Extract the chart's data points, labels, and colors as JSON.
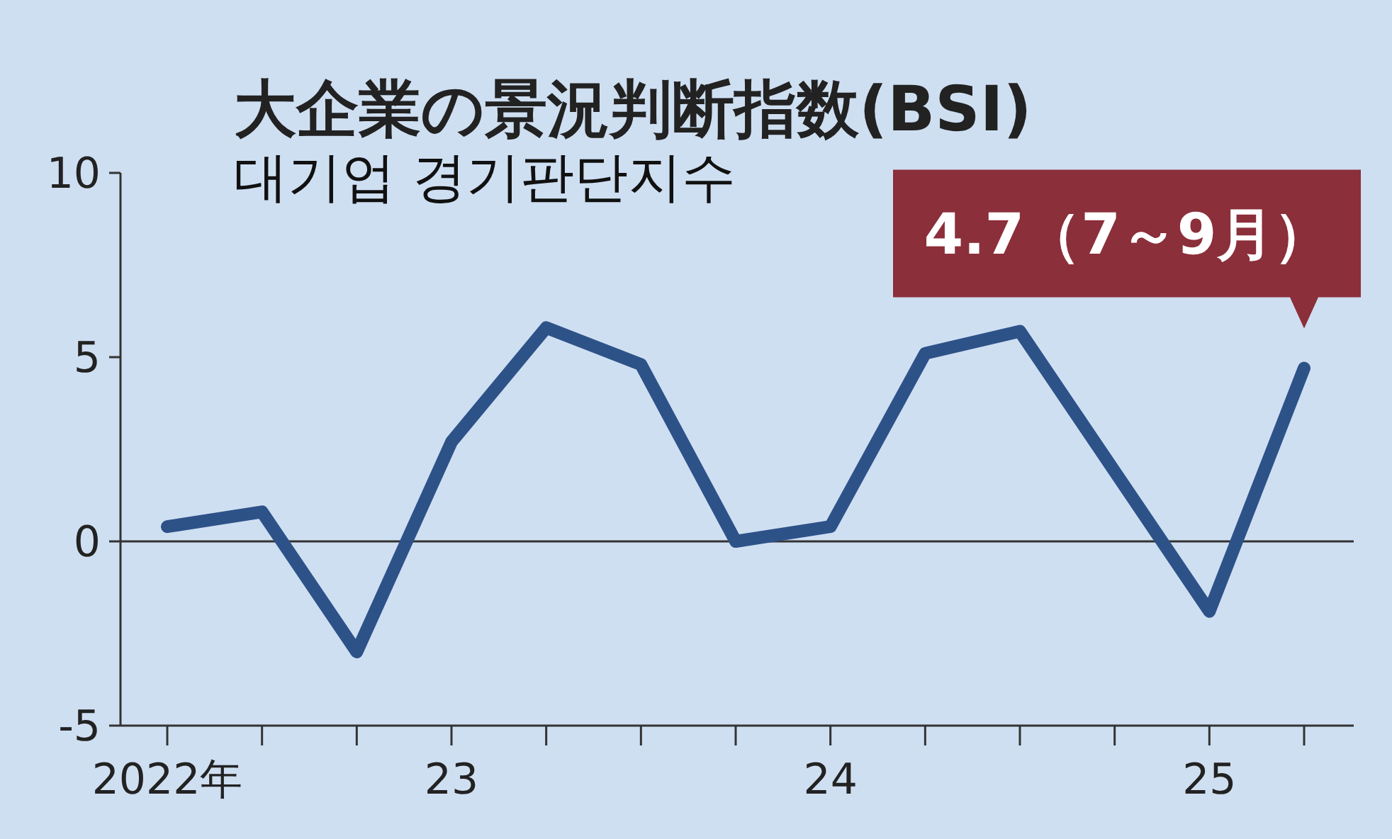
{
  "chart_data": {
    "type": "line",
    "title": "大企業の景況判断指数(BSI)",
    "subtitle": "대기업 경기판단지수",
    "categories": [
      "2022年",
      null,
      null,
      "23",
      null,
      null,
      null,
      "24",
      null,
      null,
      null,
      "25",
      null
    ],
    "series": [
      {
        "color": "#2d5288",
        "values": [
          0.4,
          0.8,
          -3.0,
          2.7,
          5.8,
          4.8,
          0.0,
          0.4,
          5.1,
          5.7,
          1.9,
          -1.9,
          4.7
        ]
      }
    ],
    "ylim": [
      -5,
      10
    ],
    "yticks": [
      -5,
      0,
      5,
      10
    ],
    "ref_lines": [
      {
        "axis": "y",
        "value": 0,
        "color": "#333333"
      }
    ],
    "annotations": [
      "4.7（7～9月）"
    ],
    "line_style": "solid",
    "marker": "none",
    "grid": false
  }
}
